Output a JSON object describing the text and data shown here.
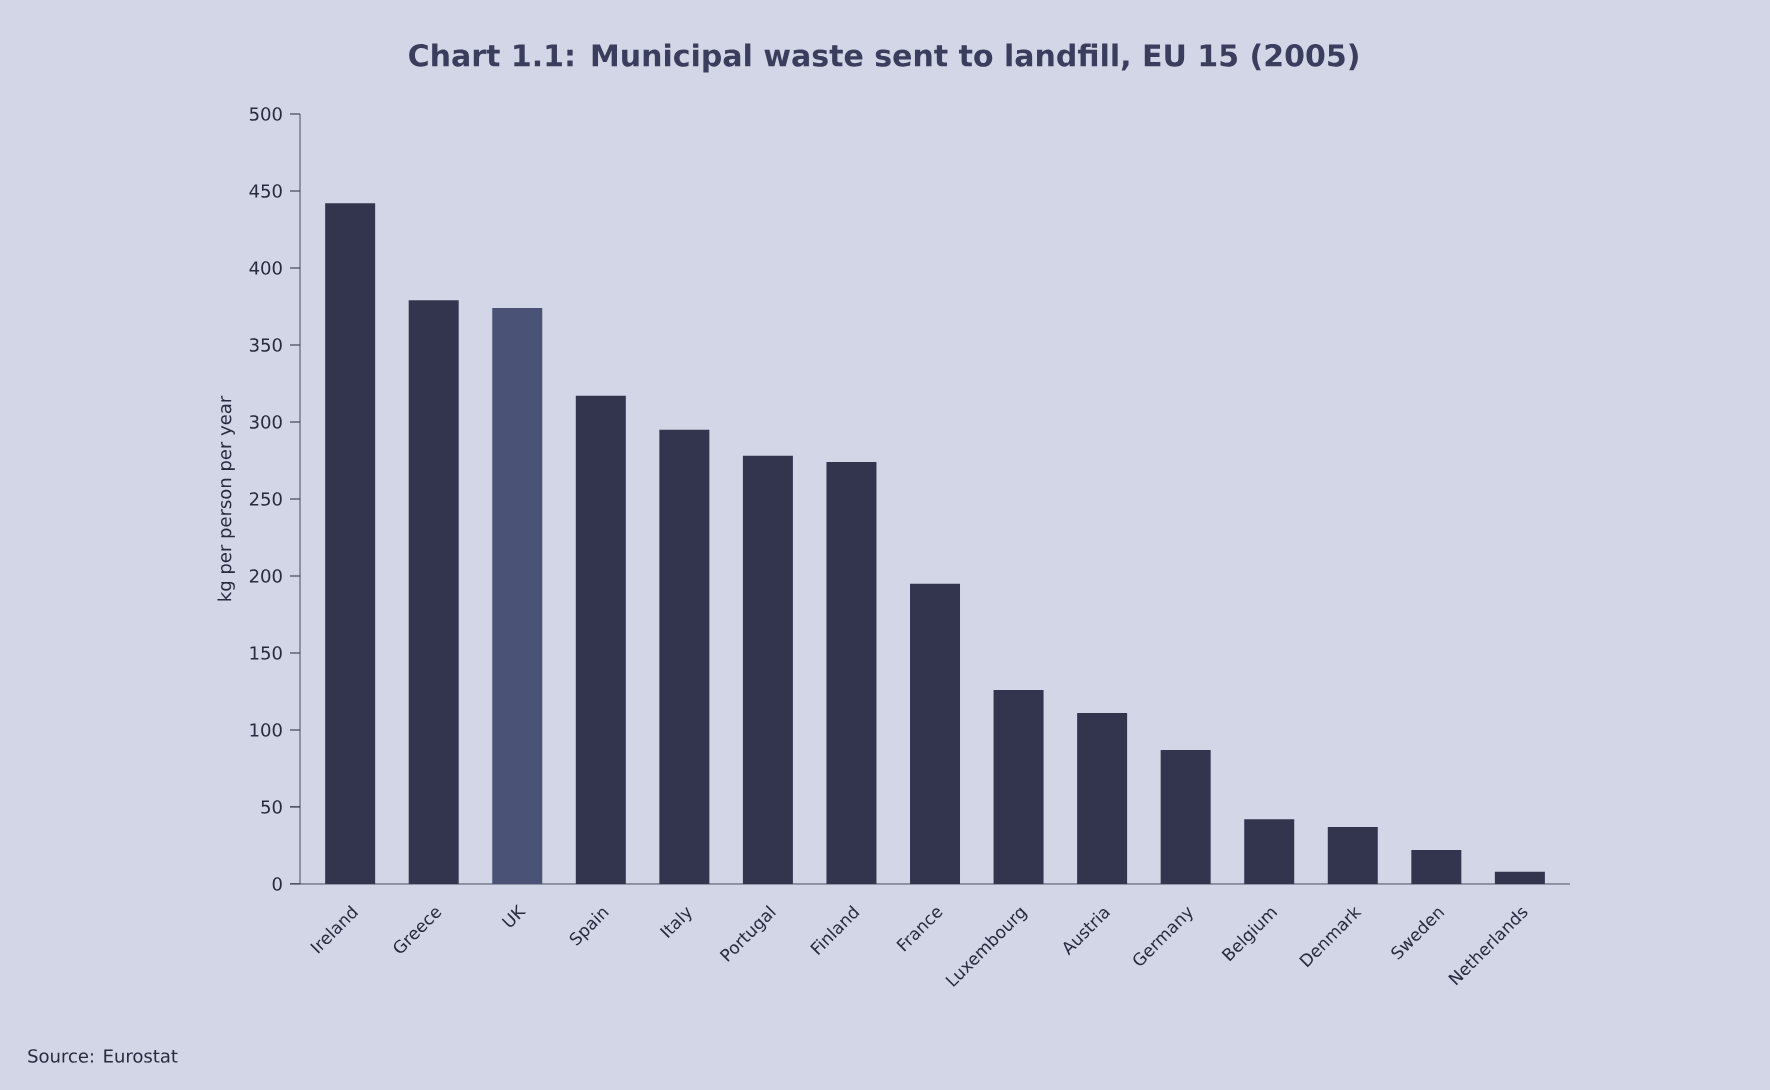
{
  "chart_data": {
    "type": "bar",
    "title": "Chart 1.1: Municipal waste sent to landfill, EU 15 (2005)",
    "ylabel": "kg per person per year",
    "categories": [
      "Ireland",
      "Greece",
      "UK",
      "Spain",
      "Italy",
      "Portugal",
      "Finland",
      "France",
      "Luxembourg",
      "Austria",
      "Germany",
      "Belgium",
      "Denmark",
      "Sweden",
      "Netherlands"
    ],
    "values": [
      442,
      379,
      374,
      317,
      295,
      278,
      274,
      195,
      126,
      111,
      87,
      42,
      37,
      22,
      8
    ],
    "colors": [
      "#33354f",
      "#33354f",
      "#4a5275",
      "#33354f",
      "#33354f",
      "#33354f",
      "#33354f",
      "#33354f",
      "#33354f",
      "#33354f",
      "#33354f",
      "#33354f",
      "#33354f",
      "#33354f",
      "#33354f"
    ],
    "ylim": [
      0,
      500
    ],
    "yticks": [
      0,
      50,
      100,
      150,
      200,
      250,
      300,
      350,
      400,
      450,
      500
    ],
    "annotations": [
      "Source: Eurostat"
    ]
  }
}
